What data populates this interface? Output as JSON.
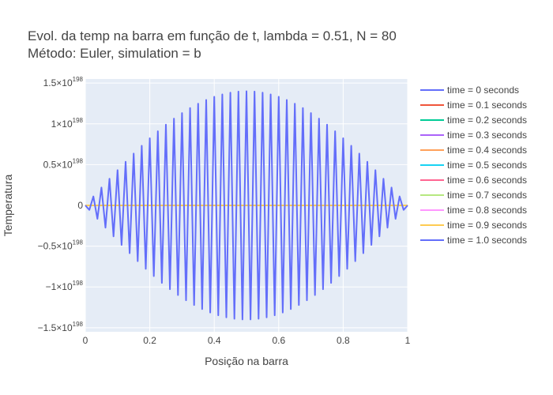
{
  "chart_data": {
    "type": "line",
    "title_line1": "Evol. da temp na barra em função de t, lambda = 0.51, N = 80",
    "title_line2": "Método: Euler, simulation = b",
    "xlabel": "Posição na barra",
    "ylabel": "Temperatura",
    "xlim": [
      0,
      1
    ],
    "ylim": [
      -1.55e+198,
      1.55e+198
    ],
    "x_ticks": [
      0,
      0.2,
      0.4,
      0.6,
      0.8,
      1
    ],
    "x_tick_labels": [
      "0",
      "0.2",
      "0.4",
      "0.6",
      "0.8",
      "1"
    ],
    "y_ticks": [
      1.5e+198,
      1e+198,
      5e+197,
      0,
      -5e+197,
      -1e+198,
      -1.5e+198
    ],
    "y_tick_labels": [
      {
        "mantissa": "1.5",
        "exp": "198"
      },
      {
        "mantissa": "1",
        "exp": "198"
      },
      {
        "mantissa": "0.5",
        "exp": "198"
      },
      {
        "mantissa": "0",
        "exp": ""
      },
      {
        "mantissa": "−0.5",
        "exp": "198"
      },
      {
        "mantissa": "−1",
        "exp": "198"
      },
      {
        "mantissa": "−1.5",
        "exp": "198"
      }
    ],
    "grid": true,
    "legend_position": "right",
    "colors": {
      "plot_bg": "#E5ECF6",
      "series": [
        "#636efa",
        "#EF553B",
        "#00cc96",
        "#ab63fa",
        "#FFA15A",
        "#19d3f3",
        "#FF6692",
        "#B6E880",
        "#FF97FF",
        "#FECB52",
        "#636efa"
      ]
    },
    "series": [
      {
        "name": "time = 0 seconds",
        "kind": "flat",
        "value": 0
      },
      {
        "name": "time = 0.1 seconds",
        "kind": "flat",
        "value": 0
      },
      {
        "name": "time = 0.2 seconds",
        "kind": "flat",
        "value": 0
      },
      {
        "name": "time = 0.3 seconds",
        "kind": "flat",
        "value": 0
      },
      {
        "name": "time = 0.4 seconds",
        "kind": "flat",
        "value": 0
      },
      {
        "name": "time = 0.5 seconds",
        "kind": "flat",
        "value": 0
      },
      {
        "name": "time = 0.6 seconds",
        "kind": "flat",
        "value": 0
      },
      {
        "name": "time = 0.7 seconds",
        "kind": "flat",
        "value": 0
      },
      {
        "name": "time = 0.8 seconds",
        "kind": "flat",
        "value": 0
      },
      {
        "name": "time = 0.9 seconds",
        "kind": "flat",
        "value": 0
      },
      {
        "name": "time = 1.0 seconds",
        "kind": "oscillating",
        "n_points": 81,
        "peak_amplitude": 1.4e+198
      }
    ]
  }
}
